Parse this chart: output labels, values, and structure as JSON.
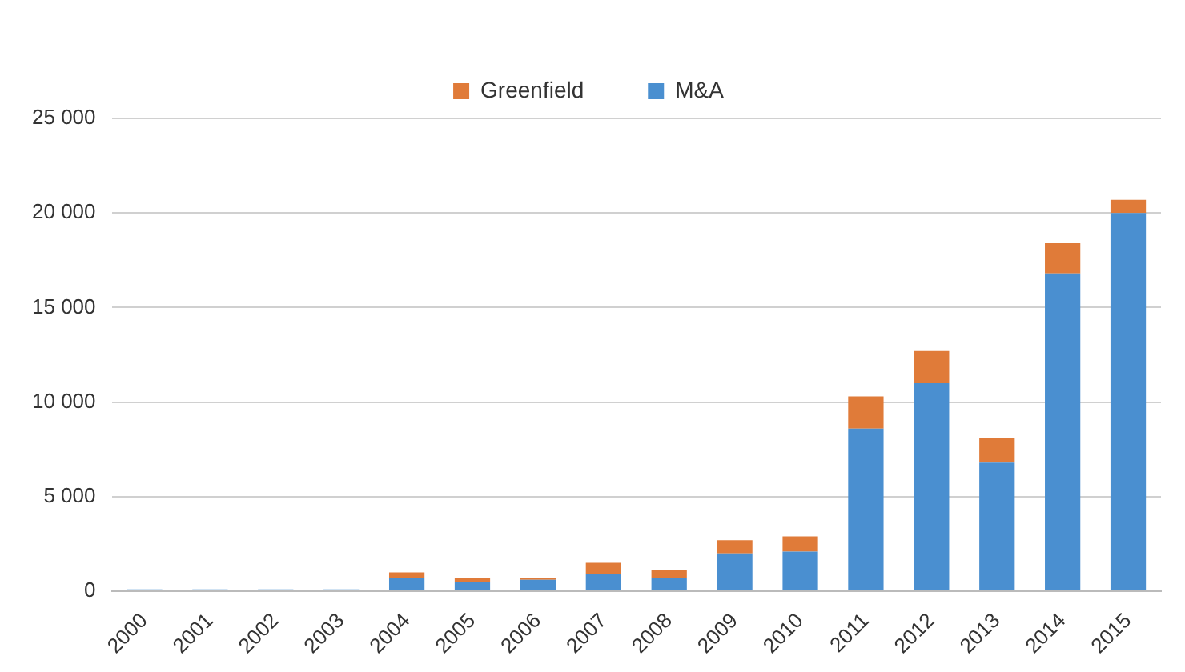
{
  "chart_data": {
    "type": "bar",
    "stacked": true,
    "categories": [
      "2000",
      "2001",
      "2002",
      "2003",
      "2004",
      "2005",
      "2006",
      "2007",
      "2008",
      "2009",
      "2010",
      "2011",
      "2012",
      "2013",
      "2014",
      "2015"
    ],
    "series": [
      {
        "name": "M&A",
        "color": "#4a8fd0",
        "values": [
          100,
          100,
          100,
          100,
          700,
          500,
          600,
          900,
          700,
          2000,
          2100,
          8600,
          11000,
          6800,
          16800,
          20000
        ]
      },
      {
        "name": "Greenfield",
        "color": "#e07b39",
        "values": [
          0,
          0,
          0,
          0,
          300,
          200,
          100,
          600,
          400,
          700,
          800,
          1700,
          1700,
          1300,
          1600,
          700
        ]
      }
    ],
    "ylim": [
      0,
      25000
    ],
    "yticks": [
      0,
      {
        "value": 5000,
        "label": "5 000"
      },
      {
        "value": 10000,
        "label": "10 000"
      },
      {
        "value": 15000,
        "label": "15 000"
      },
      {
        "value": 20000,
        "label": "20 000"
      },
      {
        "value": 25000,
        "label": "25 000"
      }
    ],
    "grid": "y",
    "legend": "top"
  }
}
